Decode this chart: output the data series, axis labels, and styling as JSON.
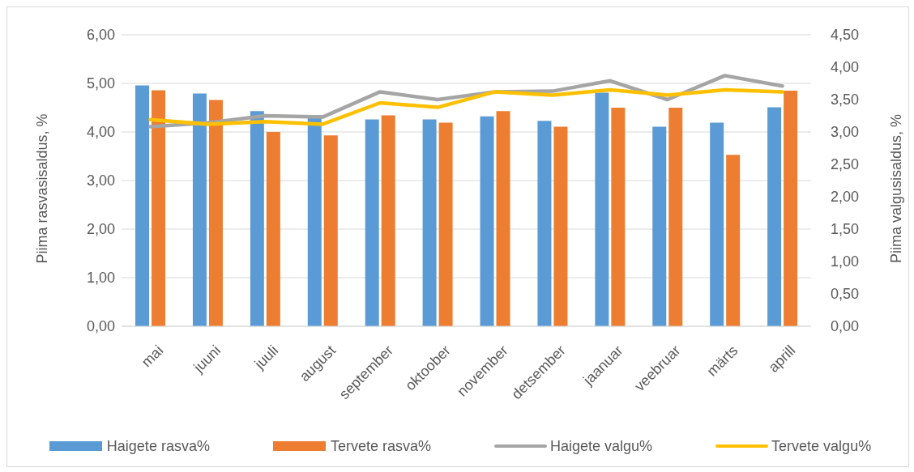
{
  "chart_data": {
    "type": "bar",
    "categories": [
      "mai",
      "juuni",
      "juuli",
      "august",
      "september",
      "oktoober",
      "november",
      "detsember",
      "jaanuar",
      "veebruar",
      "märts",
      "aprill"
    ],
    "series": [
      {
        "name": "Haigete rasva%",
        "color": "#5b9bd5",
        "values": [
          4.96,
          4.79,
          4.43,
          4.34,
          4.26,
          4.26,
          4.32,
          4.23,
          4.81,
          4.11,
          4.19,
          4.51
        ]
      },
      {
        "name": "Tervete rasva%",
        "color": "#ed7d31",
        "values": [
          4.86,
          4.66,
          4.0,
          3.93,
          4.34,
          4.19,
          4.43,
          4.11,
          4.5,
          4.5,
          3.53,
          4.85
        ]
      },
      {
        "name": "Haigete valgu%",
        "type": "line",
        "axis": "y2",
        "color": "#a5a5a5",
        "values": [
          3.08,
          3.14,
          3.25,
          3.23,
          3.62,
          3.5,
          3.62,
          3.63,
          3.79,
          3.5,
          3.87,
          3.71
        ]
      },
      {
        "name": "Tervete valgu%",
        "type": "line",
        "axis": "y2",
        "color": "#ffc000",
        "values": [
          3.19,
          3.12,
          3.16,
          3.12,
          3.45,
          3.38,
          3.62,
          3.57,
          3.65,
          3.57,
          3.65,
          3.62
        ]
      }
    ],
    "ylabel": "Piima rasvasisaldus, %",
    "y2label": "Piima valgusisaldus, %",
    "ylim": [
      0,
      6
    ],
    "yticks": [
      {
        "value": 0,
        "label": "0,00"
      },
      {
        "value": 1,
        "label": "1,00"
      },
      {
        "value": 2,
        "label": "2,00"
      },
      {
        "value": 3,
        "label": "3,00"
      },
      {
        "value": 4,
        "label": "4,00"
      },
      {
        "value": 5,
        "label": "5,00"
      },
      {
        "value": 6,
        "label": "6,00"
      }
    ],
    "y2lim": [
      0,
      4.5
    ],
    "y2ticks": [
      {
        "value": 0,
        "label": "0,00"
      },
      {
        "value": 0.5,
        "label": "0,50"
      },
      {
        "value": 1,
        "label": "1,00"
      },
      {
        "value": 1.5,
        "label": "1,50"
      },
      {
        "value": 2,
        "label": "2,00"
      },
      {
        "value": 2.5,
        "label": "2,50"
      },
      {
        "value": 3,
        "label": "3,00"
      },
      {
        "value": 3.5,
        "label": "3,50"
      },
      {
        "value": 4,
        "label": "4,00"
      },
      {
        "value": 4.5,
        "label": "4,50"
      }
    ],
    "grid": "y",
    "legend": "bottom",
    "marker": "none",
    "line_style": "solid"
  }
}
